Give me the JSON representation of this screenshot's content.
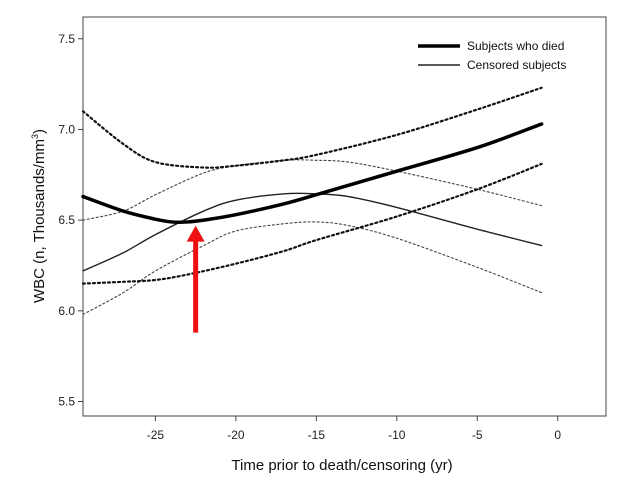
{
  "chart_data": {
    "type": "line",
    "title": "",
    "xlabel": "Time prior to death/censoring (yr)",
    "ylabel_main": "WBC (n, Thousands/mm",
    "ylabel_sup": "3",
    "ylabel_close": ")",
    "xlim": [
      -29.5,
      3
    ],
    "ylim": [
      5.42,
      7.62
    ],
    "x_ticks": [
      -25,
      -20,
      -15,
      -10,
      -5,
      0
    ],
    "x_tick_labels": [
      "-25",
      "-20",
      "-15",
      "-10",
      "-5",
      "0"
    ],
    "y_ticks": [
      5.5,
      6.0,
      6.5,
      7.0,
      7.5
    ],
    "y_tick_labels": [
      "5.5",
      "6.0",
      "6.5",
      "7.0",
      "7.5"
    ],
    "legend": {
      "position": "top-right",
      "entries": [
        "Subjects who died",
        "Censored subjects"
      ]
    },
    "series": [
      {
        "name": "Subjects who died",
        "style": "thick-solid",
        "x": [
          -29.5,
          -27,
          -25,
          -24,
          -23,
          -22,
          -20,
          -17,
          -15,
          -10,
          -5,
          -1
        ],
        "y": [
          6.63,
          6.55,
          6.505,
          6.49,
          6.49,
          6.5,
          6.53,
          6.59,
          6.64,
          6.77,
          6.9,
          7.03
        ]
      },
      {
        "name": "Censored subjects",
        "style": "thin-solid",
        "x": [
          -29.5,
          -27,
          -25,
          -22,
          -20,
          -17,
          -15,
          -13,
          -10,
          -5,
          -1
        ],
        "y": [
          6.22,
          6.32,
          6.42,
          6.55,
          6.61,
          6.645,
          6.645,
          6.63,
          6.57,
          6.45,
          6.36
        ]
      },
      {
        "name": "Subjects who died upper CI",
        "style": "thick-dotted",
        "x": [
          -29.5,
          -27,
          -25,
          -22,
          -20,
          -17,
          -15,
          -10,
          -5,
          -1
        ],
        "y": [
          7.1,
          6.92,
          6.82,
          6.79,
          6.8,
          6.83,
          6.86,
          6.97,
          7.11,
          7.23
        ]
      },
      {
        "name": "Subjects who died lower CI",
        "style": "thick-dotted",
        "x": [
          -29.5,
          -27,
          -25,
          -23,
          -20,
          -17,
          -15,
          -10,
          -5,
          -1
        ],
        "y": [
          6.15,
          6.16,
          6.17,
          6.2,
          6.26,
          6.33,
          6.39,
          6.52,
          6.67,
          6.81
        ]
      },
      {
        "name": "Censored upper CI",
        "style": "thin-dotted",
        "x": [
          -29.5,
          -27,
          -25,
          -22,
          -20,
          -17,
          -15,
          -13,
          -10,
          -5,
          -1
        ],
        "y": [
          6.5,
          6.55,
          6.64,
          6.76,
          6.8,
          6.83,
          6.83,
          6.82,
          6.77,
          6.67,
          6.58
        ]
      },
      {
        "name": "Censored lower CI",
        "style": "thin-dotted",
        "x": [
          -29.5,
          -27,
          -25,
          -22,
          -20,
          -17,
          -15,
          -13,
          -10,
          -5,
          -1
        ],
        "y": [
          5.98,
          6.1,
          6.22,
          6.36,
          6.44,
          6.48,
          6.49,
          6.47,
          6.4,
          6.24,
          6.1
        ]
      }
    ],
    "annotation": {
      "type": "arrow",
      "color": "#ee1111",
      "from": [
        -22.5,
        5.88
      ],
      "to": [
        -22.5,
        6.47
      ]
    }
  }
}
